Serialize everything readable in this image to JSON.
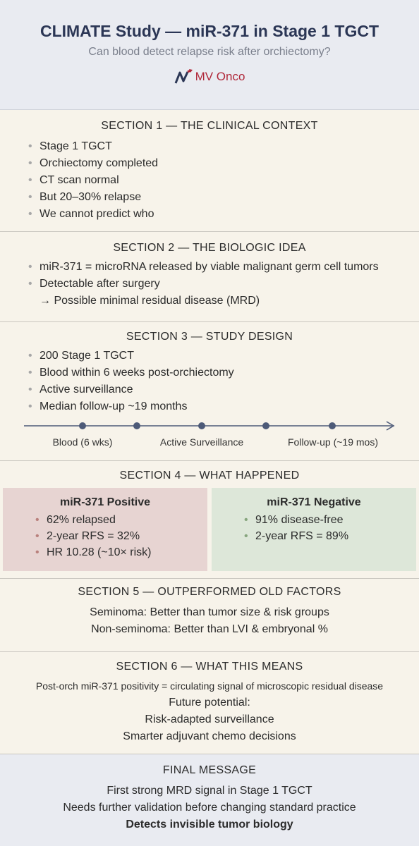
{
  "header": {
    "title": "CLIMATE Study — miR-371 in Stage 1 TGCT",
    "subtitle": "Can blood detect relapse risk after orchiectomy?",
    "brand": "MV Onco",
    "brand_color": "#b0283a"
  },
  "section1": {
    "title": "SECTION 1 — THE CLINICAL CONTEXT",
    "items": [
      "Stage 1 TGCT",
      "Orchiectomy completed",
      "CT scan normal",
      "But 20–30% relapse",
      "We cannot predict who"
    ]
  },
  "section2": {
    "title": "SECTION 2 — THE BIOLOGIC IDEA",
    "items": [
      "miR-371 = microRNA released by viable malignant germ cell tumors",
      "Detectable after surgery"
    ],
    "arrow_text": "→ Possible minimal residual disease (MRD)"
  },
  "section3": {
    "title": "SECTION 3 — STUDY DESIGN",
    "items": [
      "200 Stage 1 TGCT",
      "Blood within 6 weeks post-orchiectomy",
      "Active surveillance",
      "Median follow-up ~19 months"
    ],
    "timeline_labels": [
      "Blood (6 wks)",
      "Active Surveillance",
      "Follow-up (~19 mos)"
    ]
  },
  "section4": {
    "title": "SECTION 4 — WHAT HAPPENED",
    "positive": {
      "title": "miR-371 Positive",
      "items": [
        "62% relapsed",
        "2-year RFS = 32%",
        "HR 10.28 (~10× risk)"
      ],
      "color": "#e7d4d2"
    },
    "negative": {
      "title": "miR-371 Negative",
      "items": [
        "91% disease-free",
        "2-year RFS = 89%"
      ],
      "color": "#dde7d9"
    }
  },
  "section5": {
    "title": "SECTION 5 — OUTPERFORMED OLD FACTORS",
    "lines": [
      "Seminoma: Better than tumor size & risk groups",
      "Non-seminoma: Better than LVI & embryonal %"
    ]
  },
  "section6": {
    "title": "SECTION 6 — WHAT THIS MEANS",
    "lead": "Post-orch miR-371 positivity = circulating signal of microscopic residual disease",
    "lines": [
      "Future potential:",
      "Risk-adapted surveillance",
      "Smarter adjuvant chemo decisions"
    ]
  },
  "final": {
    "title": "FINAL MESSAGE",
    "lines": [
      "First strong MRD signal in Stage 1 TGCT",
      "Needs further validation before changing standard practice"
    ],
    "bold_line": "Detects invisible tumor biology"
  }
}
